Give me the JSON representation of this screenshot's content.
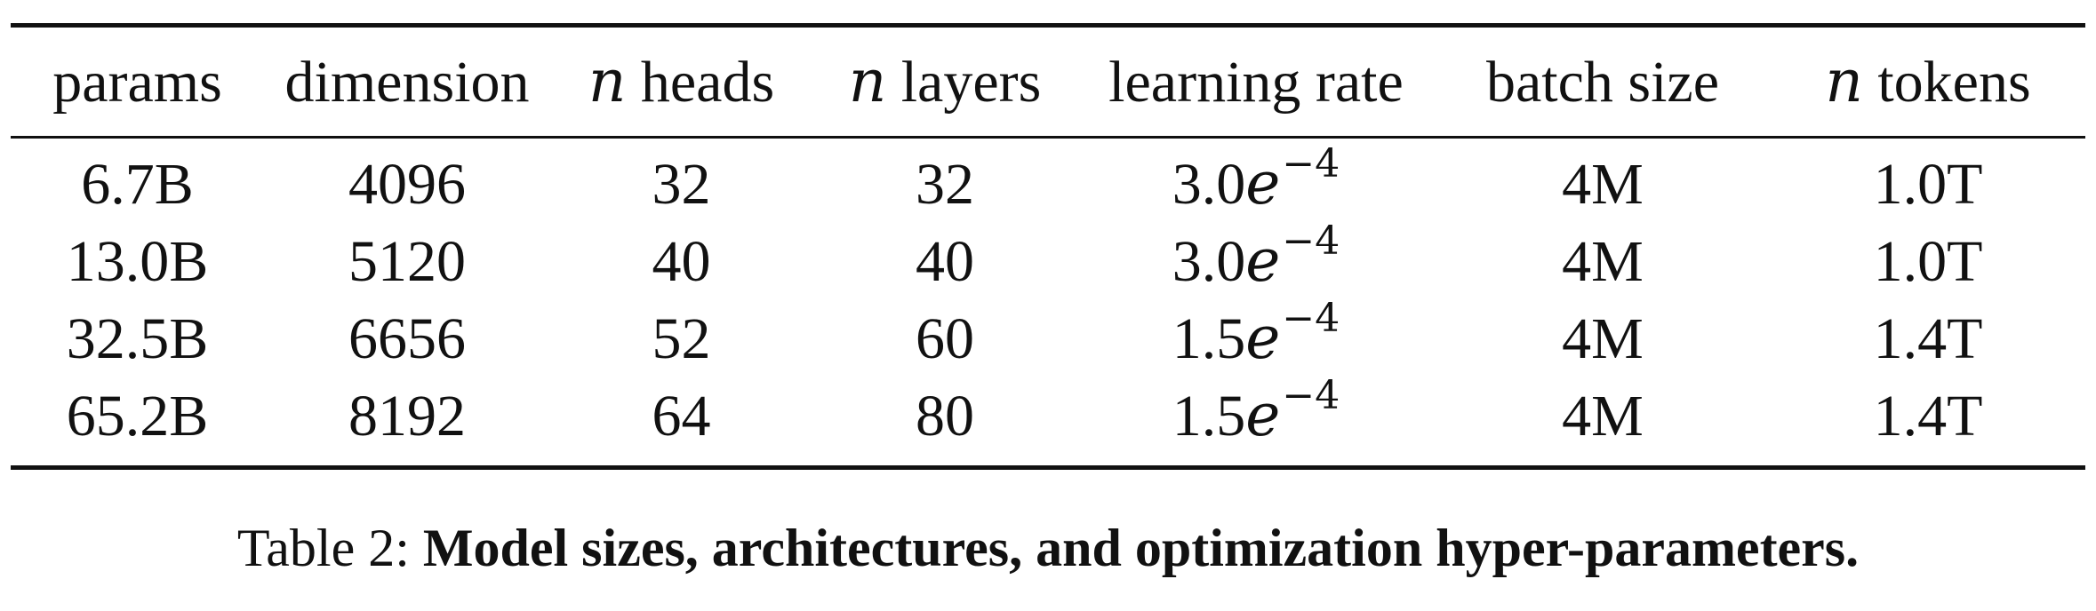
{
  "table": {
    "headers": [
      {
        "prefix": "",
        "text": "params"
      },
      {
        "prefix": "",
        "text": "dimension"
      },
      {
        "prefix": "n",
        "text": " heads"
      },
      {
        "prefix": "n",
        "text": " layers"
      },
      {
        "prefix": "",
        "text": "learning rate"
      },
      {
        "prefix": "",
        "text": "batch size"
      },
      {
        "prefix": "n",
        "text": " tokens"
      }
    ],
    "rows": [
      {
        "params": "6.7B",
        "dimension": "4096",
        "heads": "32",
        "layers": "32",
        "lr_mantissa": "3.0",
        "lr_base": "e",
        "lr_exp": "−4",
        "batch_size": "4M",
        "tokens": "1.0T"
      },
      {
        "params": "13.0B",
        "dimension": "5120",
        "heads": "40",
        "layers": "40",
        "lr_mantissa": "3.0",
        "lr_base": "e",
        "lr_exp": "−4",
        "batch_size": "4M",
        "tokens": "1.0T"
      },
      {
        "params": "32.5B",
        "dimension": "6656",
        "heads": "52",
        "layers": "60",
        "lr_mantissa": "1.5",
        "lr_base": "e",
        "lr_exp": "−4",
        "batch_size": "4M",
        "tokens": "1.4T"
      },
      {
        "params": "65.2B",
        "dimension": "8192",
        "heads": "64",
        "layers": "80",
        "lr_mantissa": "1.5",
        "lr_base": "e",
        "lr_exp": "−4",
        "batch_size": "4M",
        "tokens": "1.4T"
      }
    ]
  },
  "caption": {
    "label": "Table 2: ",
    "text": "Model sizes, architectures, and optimization hyper-parameters."
  }
}
